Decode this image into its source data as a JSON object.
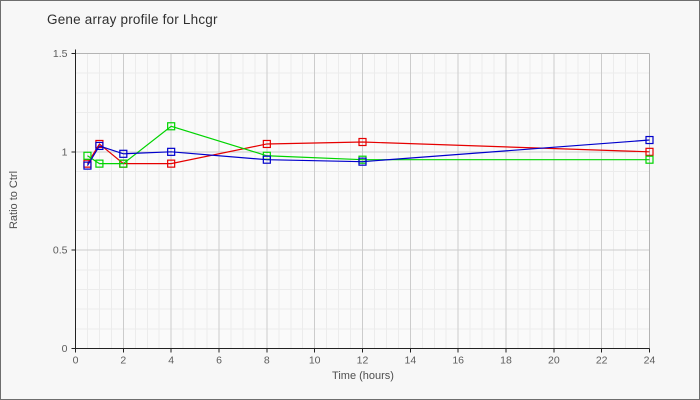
{
  "window": {
    "title": "Gene array profile for Lhcgr"
  },
  "chart_data": {
    "type": "line",
    "title": "Gene array profile for Lhcgr",
    "xlabel": "Time (hours)",
    "ylabel": "Ratio to Ctrl",
    "x": [
      0.5,
      1,
      2,
      4,
      8,
      12,
      24
    ],
    "series": [
      {
        "name": "red-series",
        "color": "#e60000",
        "values": [
          0.94,
          1.04,
          0.94,
          0.94,
          1.04,
          1.05,
          1.0
        ]
      },
      {
        "name": "green-series",
        "color": "#00d400",
        "values": [
          0.98,
          0.94,
          0.94,
          1.13,
          0.98,
          0.96,
          0.96
        ]
      },
      {
        "name": "blue-series",
        "color": "#0000cc",
        "values": [
          0.93,
          1.03,
          0.99,
          1.0,
          0.96,
          0.95,
          1.06
        ]
      }
    ],
    "xlim": [
      0,
      24
    ],
    "ylim": [
      0,
      1.5
    ],
    "x_ticks": [
      0,
      2,
      4,
      6,
      8,
      10,
      12,
      14,
      16,
      18,
      20,
      22,
      24
    ],
    "y_ticks": [
      0,
      0.5,
      1,
      1.5
    ],
    "x_minor_step": 0.5,
    "y_minor_step": 0.1,
    "grid": true,
    "legend": "none",
    "marker": "open-square"
  },
  "colors": {
    "background": "#f7f7f7",
    "plot_background": "#fafafa",
    "minor_grid": "#ececec",
    "major_grid": "#cccccc",
    "plot_border": "#b4b4b4",
    "axis": "#222222",
    "tick_text": "#5c5c5c",
    "title_text": "#2f2f2f"
  }
}
